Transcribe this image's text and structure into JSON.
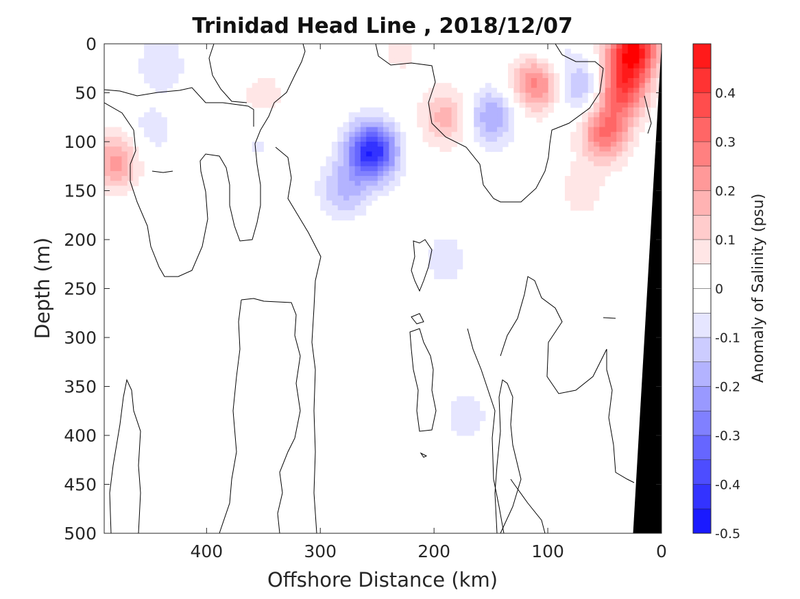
{
  "chart_data": {
    "type": "heatmap",
    "title": "Trinidad Head Line , 2018/12/07",
    "xlabel": "Offshore Distance (km)",
    "ylabel": "Depth (m)",
    "xlim": [
      490,
      0
    ],
    "ylim": [
      0,
      500
    ],
    "x_ticks": [
      400,
      300,
      200,
      100,
      0
    ],
    "y_ticks": [
      0,
      50,
      100,
      150,
      200,
      250,
      300,
      350,
      400,
      450,
      500
    ],
    "colorbar": {
      "label": "Anomaly of Salinity (psu)",
      "range": [
        -0.5,
        0.5
      ],
      "step": 0.05,
      "ticks": [
        0.4,
        0.3,
        0.2,
        0.1,
        0,
        -0.1,
        -0.2,
        -0.3,
        -0.4,
        -0.5
      ],
      "colors": {
        "negative_max": "#0000ff",
        "positive_max": "#ff0000",
        "neutral": "#ffffff"
      }
    },
    "features": [
      {
        "kind": "anomaly",
        "x": 255,
        "y": 110,
        "value": -0.45
      },
      {
        "kind": "anomaly",
        "x": 280,
        "y": 150,
        "value": -0.15
      },
      {
        "kind": "anomaly",
        "x": 190,
        "y": 220,
        "value": -0.08
      },
      {
        "kind": "anomaly",
        "x": 172,
        "y": 380,
        "value": -0.08
      },
      {
        "kind": "anomaly",
        "x": 150,
        "y": 75,
        "value": -0.2
      },
      {
        "kind": "anomaly",
        "x": 70,
        "y": 45,
        "value": -0.18
      },
      {
        "kind": "anomaly",
        "x": 440,
        "y": 20,
        "value": -0.1
      },
      {
        "kind": "anomaly",
        "x": 450,
        "y": 90,
        "value": -0.08
      },
      {
        "kind": "anomaly",
        "x": 355,
        "y": 100,
        "value": -0.06
      },
      {
        "kind": "anomaly",
        "x": 100,
        "y": 5,
        "value": -0.08
      },
      {
        "kind": "anomaly",
        "x": 480,
        "y": 120,
        "value": 0.22
      },
      {
        "kind": "anomaly",
        "x": 190,
        "y": 75,
        "value": 0.18
      },
      {
        "kind": "anomaly",
        "x": 110,
        "y": 40,
        "value": 0.28
      },
      {
        "kind": "anomaly",
        "x": 25,
        "y": 5,
        "value": 0.48
      },
      {
        "kind": "anomaly",
        "x": 35,
        "y": 45,
        "value": 0.35
      },
      {
        "kind": "anomaly",
        "x": 50,
        "y": 90,
        "value": 0.3
      },
      {
        "kind": "anomaly",
        "x": 70,
        "y": 150,
        "value": 0.08
      },
      {
        "kind": "anomaly",
        "x": 350,
        "y": 55,
        "value": 0.08
      },
      {
        "kind": "anomaly",
        "x": 230,
        "y": 10,
        "value": 0.06
      }
    ],
    "land_mask": {
      "x_at_surface": 0,
      "x_at_bottom": 25,
      "color": "#000000"
    }
  }
}
